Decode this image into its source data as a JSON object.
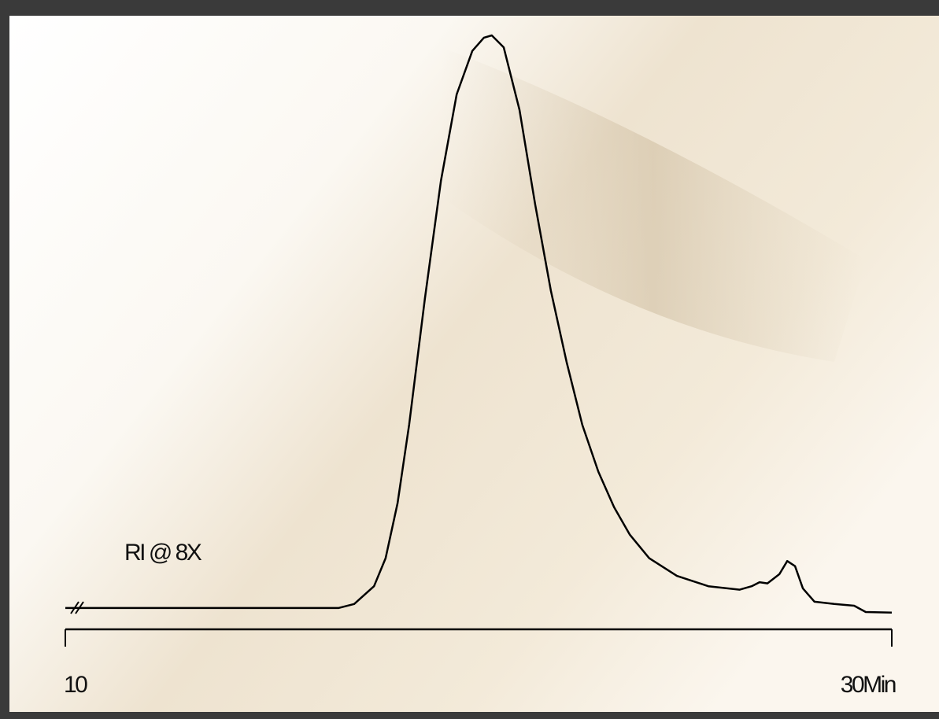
{
  "chart_data": {
    "type": "line",
    "annotation": "RI @ 8X",
    "x": [
      10.0,
      16.61,
      16.99,
      17.47,
      17.75,
      18.04,
      18.32,
      18.7,
      19.09,
      19.47,
      19.85,
      20.13,
      20.32,
      20.61,
      20.99,
      21.37,
      21.75,
      22.13,
      22.51,
      22.9,
      23.28,
      23.66,
      24.13,
      24.8,
      25.56,
      26.32,
      26.61,
      26.8,
      26.99,
      27.28,
      27.47,
      27.66,
      27.85,
      28.13,
      28.61,
      29.09,
      29.37,
      30.0
    ],
    "values": [
      0,
      0,
      0.7,
      3.8,
      8.7,
      18.3,
      32.0,
      54.0,
      74.6,
      89.7,
      97.3,
      99.6,
      100,
      97.9,
      87.0,
      70.5,
      55.4,
      43.0,
      32.0,
      23.8,
      17.6,
      12.8,
      8.7,
      5.6,
      3.8,
      3.2,
      3.8,
      4.5,
      4.3,
      5.9,
      8.2,
      7.3,
      3.4,
      1.1,
      0.7,
      0.4,
      -0.7,
      -0.8
    ],
    "color": "#000000",
    "xlim": [
      10,
      30
    ],
    "ylim": [
      -4,
      100
    ],
    "xticks": [
      10,
      {
        "value": 30,
        "label": "30Min"
      }
    ]
  }
}
